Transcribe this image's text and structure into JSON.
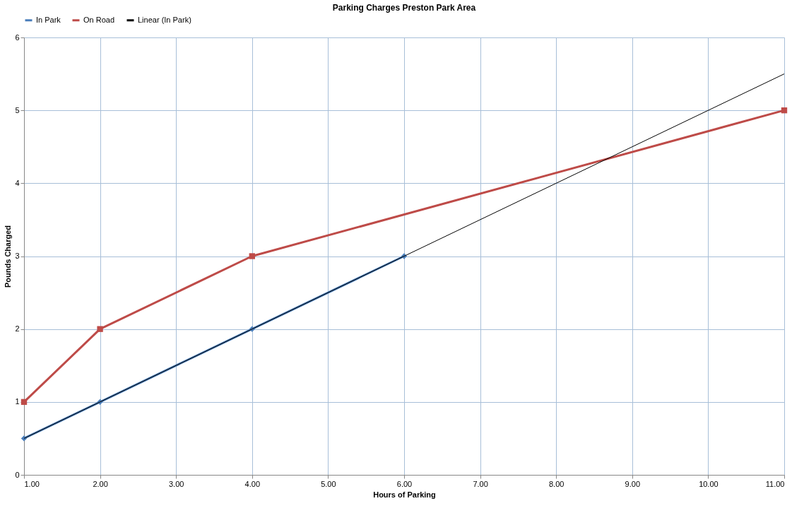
{
  "chart_data": {
    "type": "line",
    "title": "Parking  Charges Preston Park Area",
    "xlabel": "Hours of Parking",
    "ylabel": "Pounds  Charged",
    "series": [
      {
        "name": "In Park",
        "color": "#4a7ebb",
        "marker": "diamond",
        "x": [
          1,
          2,
          4,
          6
        ],
        "values": [
          0.5,
          1,
          2,
          3
        ]
      },
      {
        "name": "On Road",
        "color": "#be4b48",
        "marker": "square",
        "x": [
          1,
          2,
          4,
          11
        ],
        "values": [
          1,
          2,
          3,
          5
        ]
      },
      {
        "name": "Linear (In Park)",
        "color": "#000000",
        "marker": "none",
        "x": [
          1,
          11
        ],
        "values": [
          0.5,
          5.5
        ]
      }
    ],
    "xlim": [
      1,
      11
    ],
    "xticks": [
      {
        "value": 1,
        "label": "1.00"
      },
      {
        "value": 2,
        "label": "2.00"
      },
      {
        "value": 3,
        "label": "3.00"
      },
      {
        "value": 4,
        "label": "4.00"
      },
      {
        "value": 5,
        "label": "5.00"
      },
      {
        "value": 6,
        "label": "6.00"
      },
      {
        "value": 7,
        "label": "7.00"
      },
      {
        "value": 8,
        "label": "8.00"
      },
      {
        "value": 9,
        "label": "9.00"
      },
      {
        "value": 10,
        "label": "10.00"
      },
      {
        "value": 11,
        "label": "11.00"
      }
    ],
    "ylim": [
      0,
      6
    ],
    "yticks": [
      0,
      1,
      2,
      3,
      4,
      5,
      6
    ],
    "grid": true,
    "legend": "top",
    "line_style": "solid"
  }
}
